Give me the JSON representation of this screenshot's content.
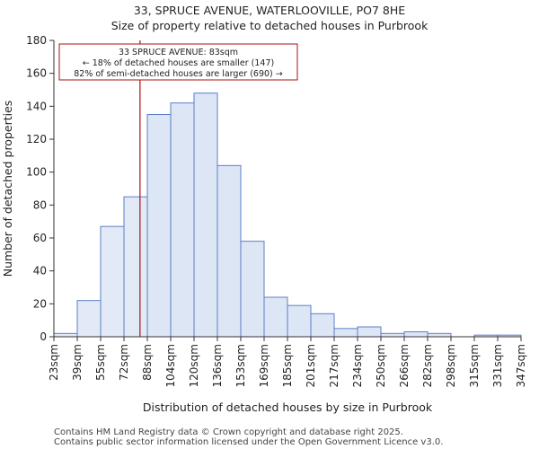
{
  "chart_data": {
    "type": "bar",
    "title": "33, SPRUCE AVENUE, WATERLOOVILLE, PO7 8HE",
    "subtitle": "Size of property relative to detached houses in Purbrook",
    "xlabel": "Distribution of detached houses by size in Purbrook",
    "ylabel": "Number of detached properties",
    "ylim": [
      0,
      180
    ],
    "yticks": [
      0,
      20,
      40,
      60,
      80,
      100,
      120,
      140,
      160,
      180
    ],
    "bin_edges": [
      23,
      39,
      55,
      72,
      88,
      104,
      120,
      136,
      153,
      169,
      185,
      201,
      217,
      234,
      250,
      266,
      282,
      298,
      315,
      331,
      347
    ],
    "bin_edge_labels": [
      "23sqm",
      "39sqm",
      "55sqm",
      "72sqm",
      "88sqm",
      "104sqm",
      "120sqm",
      "136sqm",
      "153sqm",
      "169sqm",
      "185sqm",
      "201sqm",
      "217sqm",
      "234sqm",
      "250sqm",
      "266sqm",
      "282sqm",
      "298sqm",
      "315sqm",
      "331sqm",
      "347sqm"
    ],
    "values": [
      2,
      22,
      67,
      85,
      135,
      142,
      148,
      104,
      58,
      24,
      19,
      14,
      5,
      6,
      2,
      3,
      2,
      0,
      1,
      1
    ],
    "highlight_count": 4,
    "marker": {
      "value_sqm": 83,
      "line1": "33 SPRUCE AVENUE: 83sqm",
      "line2": "← 18% of detached houses are smaller (147)",
      "line3": "82% of semi-detached houses are larger (690) →",
      "color": "#aa1111"
    },
    "colors": {
      "bar_fill": "#dde6f5",
      "bar_fill_highlight": "#e3eaf7",
      "bar_stroke": "#5b7fc6",
      "axis": "#333333"
    }
  },
  "footer": {
    "line1": "Contains HM Land Registry data © Crown copyright and database right 2025.",
    "line2": "Contains public sector information licensed under the Open Government Licence v3.0."
  }
}
